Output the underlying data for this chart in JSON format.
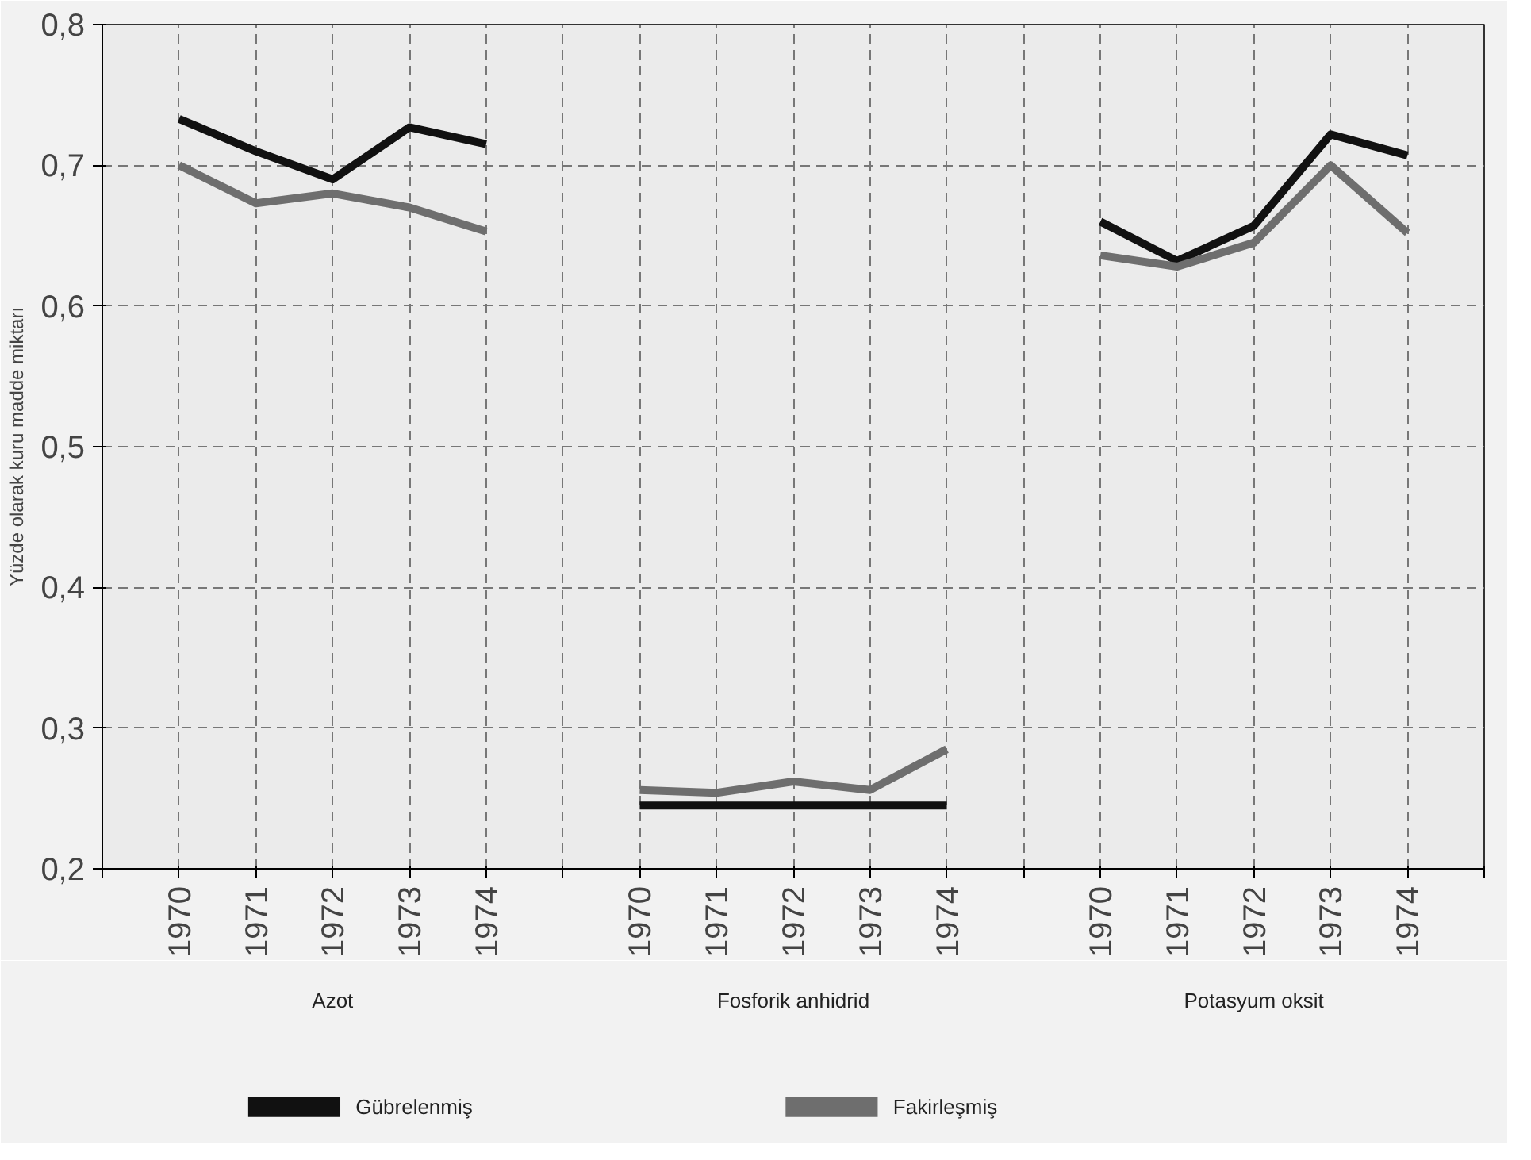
{
  "chart_data": {
    "type": "line",
    "ylabel": "Yüzde olarak kuru madde miktarı",
    "categories": [
      "1970",
      "1971",
      "1972",
      "1973",
      "1974",
      null,
      "1970",
      "1971",
      "1972",
      "1973",
      "1974",
      null,
      "1970",
      "1971",
      "1972",
      "1973",
      "1974"
    ],
    "annotations": [
      "Azot",
      "Fosforik anhidrid",
      "Potasyum oksit"
    ],
    "series": [
      {
        "name": "Gübrelenmiş",
        "color": "#111111",
        "values": [
          0.733,
          0.71,
          0.69,
          0.727,
          0.715,
          null,
          0.245,
          0.245,
          0.245,
          0.245,
          0.245,
          null,
          0.66,
          0.632,
          0.657,
          0.722,
          0.707
        ]
      },
      {
        "name": "Fakirleşmiş",
        "color": "#6e6e6e",
        "values": [
          0.7,
          0.673,
          0.68,
          0.67,
          0.653,
          null,
          0.256,
          0.254,
          0.262,
          0.256,
          0.285,
          null,
          0.636,
          0.628,
          0.645,
          0.7,
          0.652
        ]
      }
    ],
    "ylim": [
      0.2,
      0.8
    ],
    "yticks": [
      {
        "value": 0.2,
        "label": "0,2"
      },
      {
        "value": 0.3,
        "label": "0,3"
      },
      {
        "value": 0.4,
        "label": "0,4"
      },
      {
        "value": 0.5,
        "label": "0,5"
      },
      {
        "value": 0.6,
        "label": "0,6"
      },
      {
        "value": 0.7,
        "label": "0,7"
      },
      {
        "value": 0.8,
        "label": "0,8"
      }
    ],
    "grid": true,
    "legend": "bottom",
    "line_style": "solid",
    "marker": "none"
  }
}
